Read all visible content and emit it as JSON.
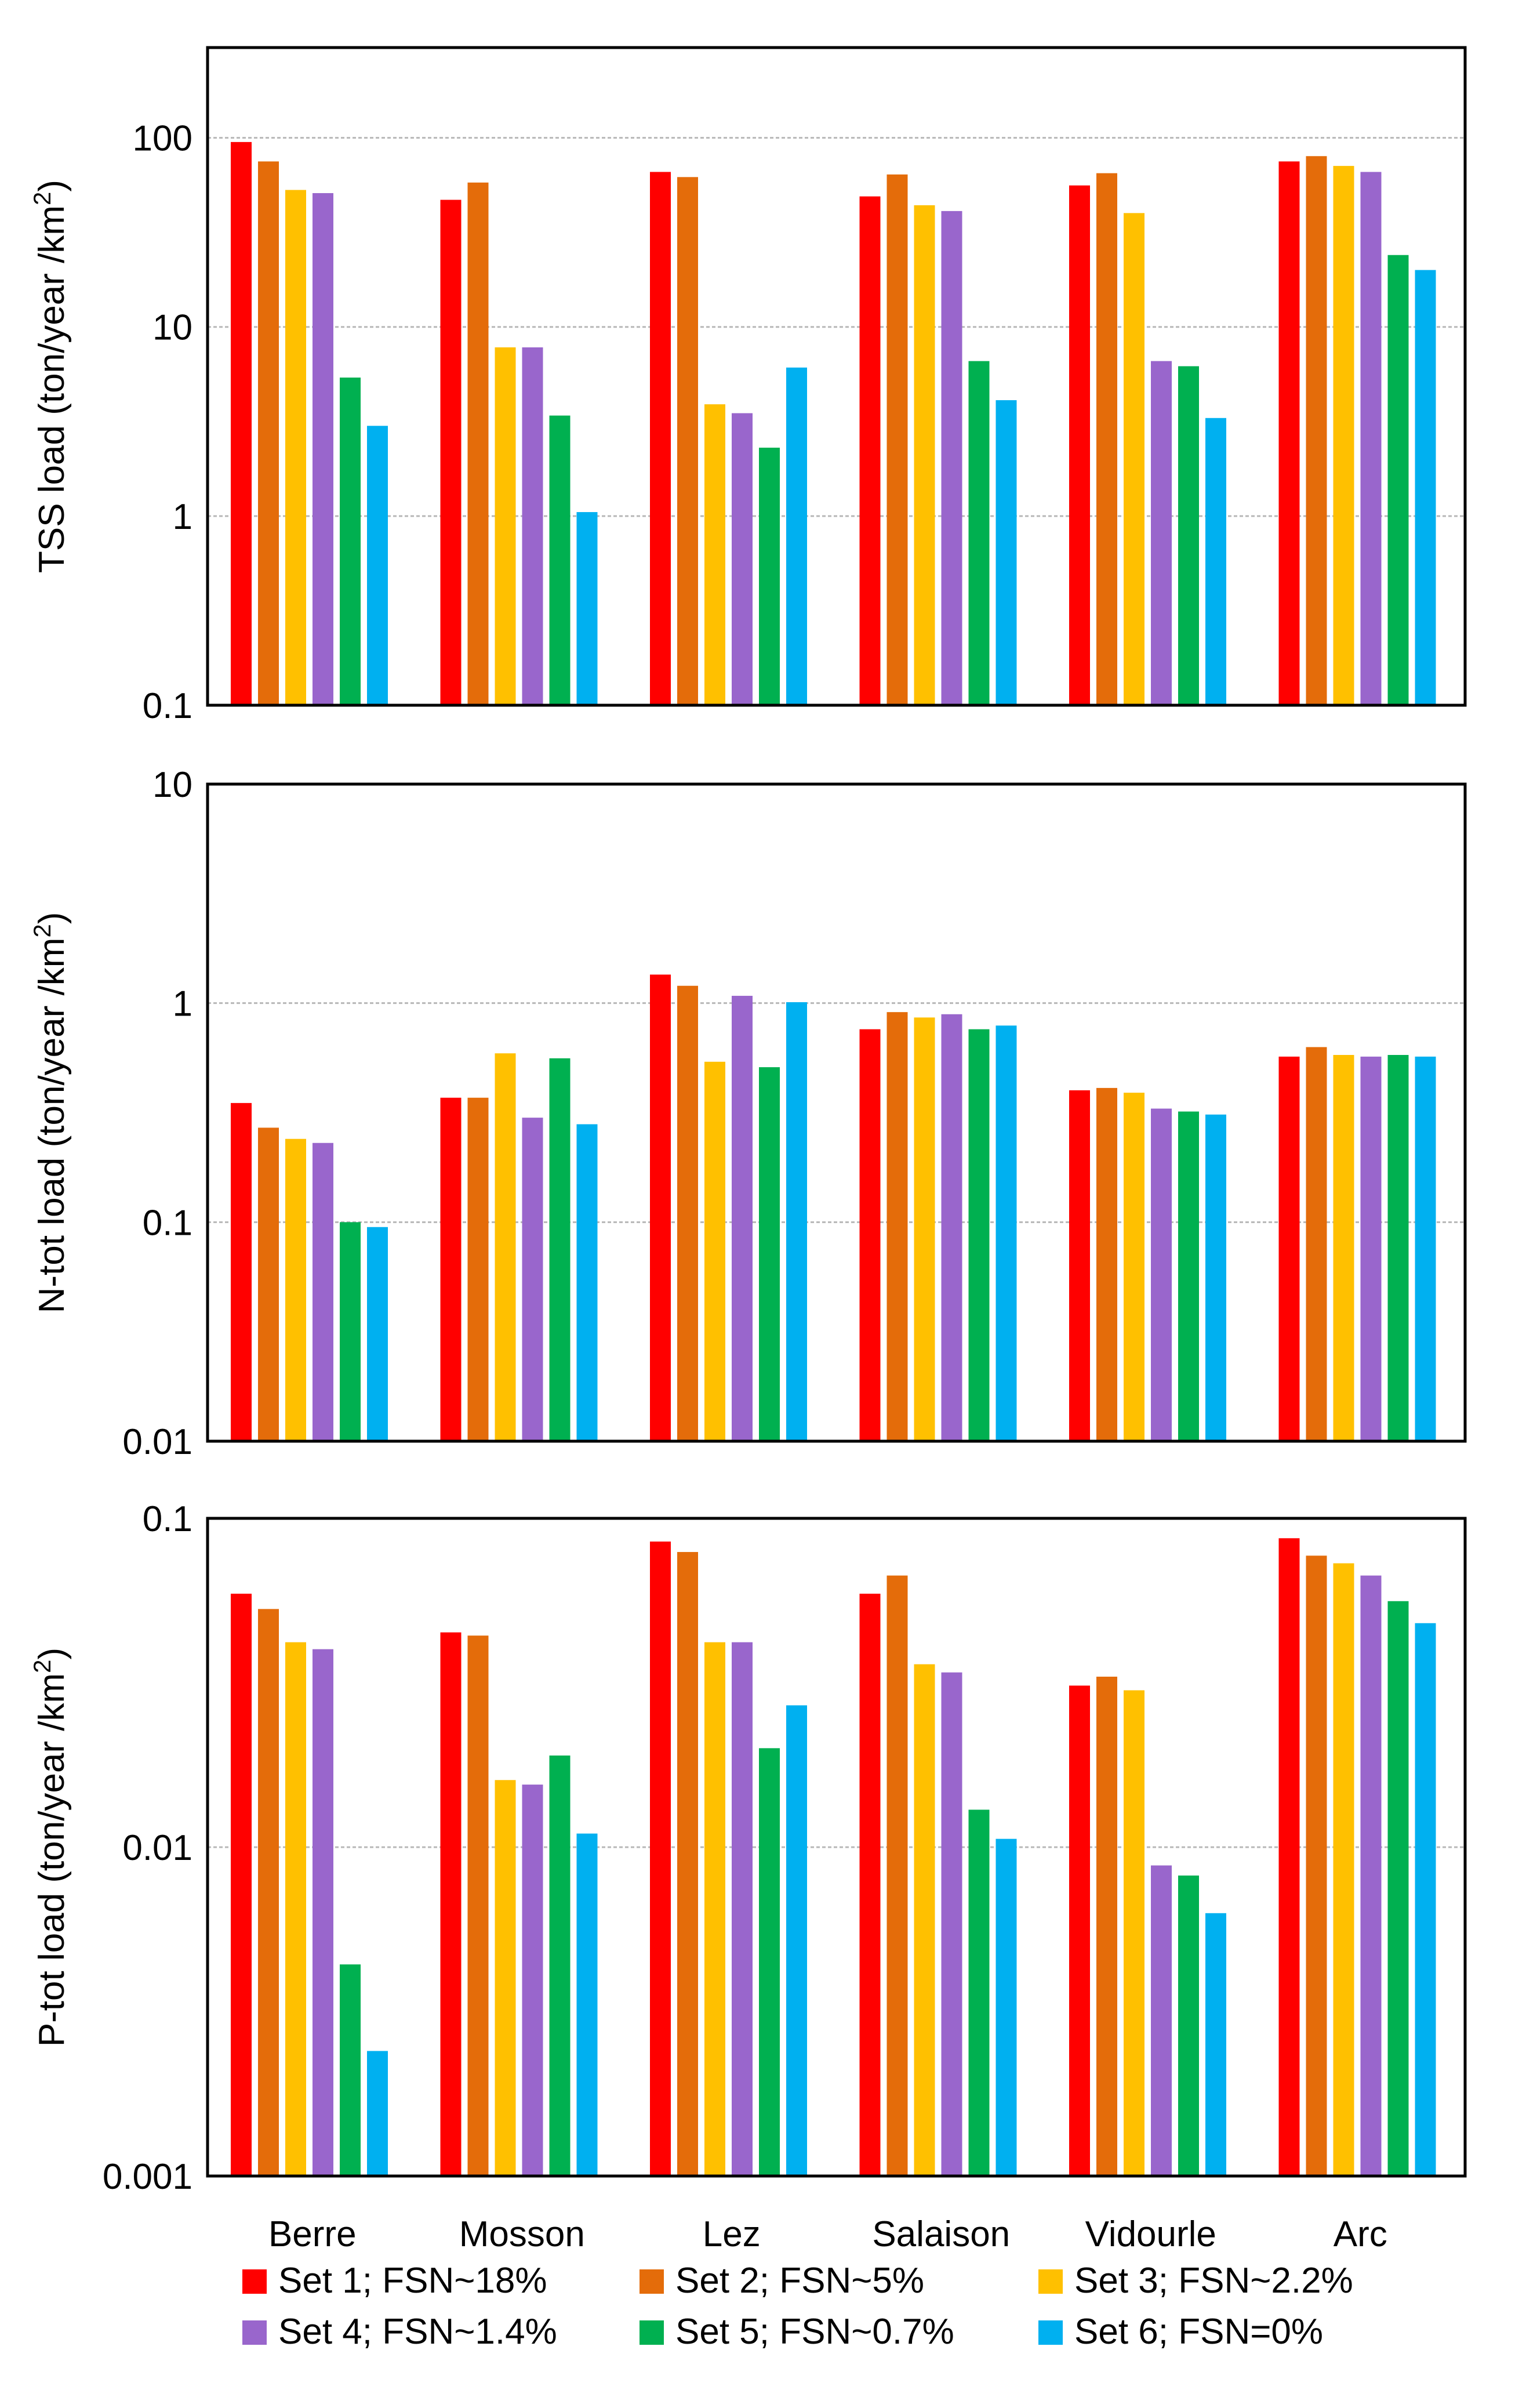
{
  "colors": {
    "set1": "#ff0000",
    "set2": "#e46c0a",
    "set3": "#ffc000",
    "set4": "#9966cc",
    "set5": "#00b050",
    "set6": "#00b0f0"
  },
  "chart_data": [
    {
      "type": "bar",
      "scale": "log",
      "ylabel": "TSS load (ton/year /km²)",
      "ylim": [
        0.1,
        300
      ],
      "yticks": [
        0.1,
        1,
        10,
        100
      ],
      "ytick_labels": [
        "0.1",
        "1",
        "10",
        "100"
      ],
      "categories": [
        "Berre",
        "Mosson",
        "Lez",
        "Salaison",
        "Vidourle",
        "Arc"
      ],
      "series": [
        {
          "name": "Set 1; FSN~18%",
          "values": [
            95,
            47,
            66,
            49,
            56,
            75
          ]
        },
        {
          "name": "Set 2; FSN~5%",
          "values": [
            75,
            58,
            62,
            64,
            65,
            80
          ]
        },
        {
          "name": "Set 3; FSN~2.2%",
          "values": [
            53,
            7.8,
            3.9,
            44,
            40,
            71
          ]
        },
        {
          "name": "Set 4; FSN~1.4%",
          "values": [
            51,
            7.8,
            3.5,
            41,
            6.6,
            66
          ]
        },
        {
          "name": "Set 5; FSN~0.7%",
          "values": [
            5.4,
            3.4,
            2.3,
            6.6,
            6.2,
            24
          ]
        },
        {
          "name": "Set 6; FSN=0%",
          "values": [
            3.0,
            1.05,
            6.1,
            4.1,
            3.3,
            20
          ]
        }
      ]
    },
    {
      "type": "bar",
      "scale": "log",
      "ylabel": "N-tot load (ton/year /km²)",
      "ylim": [
        0.01,
        10
      ],
      "yticks": [
        0.01,
        0.1,
        1,
        10
      ],
      "ytick_labels": [
        "0.01",
        "0.1",
        "1",
        "10"
      ],
      "categories": [
        "Berre",
        "Mosson",
        "Lez",
        "Salaison",
        "Vidourle",
        "Arc"
      ],
      "series": [
        {
          "name": "Set 1; FSN~18%",
          "values": [
            0.35,
            0.37,
            1.35,
            0.76,
            0.4,
            0.57
          ]
        },
        {
          "name": "Set 2; FSN~5%",
          "values": [
            0.27,
            0.37,
            1.2,
            0.91,
            0.41,
            0.63
          ]
        },
        {
          "name": "Set 3; FSN~2.2%",
          "values": [
            0.24,
            0.59,
            0.54,
            0.86,
            0.39,
            0.58
          ]
        },
        {
          "name": "Set 4; FSN~1.4%",
          "values": [
            0.23,
            0.3,
            1.08,
            0.89,
            0.33,
            0.57
          ]
        },
        {
          "name": "Set 5; FSN~0.7%",
          "values": [
            0.1,
            0.56,
            0.51,
            0.76,
            0.32,
            0.58
          ]
        },
        {
          "name": "Set 6; FSN=0%",
          "values": [
            0.095,
            0.28,
            1.01,
            0.79,
            0.31,
            0.57
          ]
        }
      ]
    },
    {
      "type": "bar",
      "scale": "log",
      "ylabel": "P-tot load (ton/year /km²)",
      "ylim": [
        0.001,
        0.1
      ],
      "yticks": [
        0.001,
        0.01,
        0.1
      ],
      "ytick_labels": [
        "0.001",
        "0.01",
        "0.1"
      ],
      "categories": [
        "Berre",
        "Mosson",
        "Lez",
        "Salaison",
        "Vidourle",
        "Arc"
      ],
      "series": [
        {
          "name": "Set 1; FSN~18%",
          "values": [
            0.059,
            0.045,
            0.085,
            0.059,
            0.031,
            0.087
          ]
        },
        {
          "name": "Set 2; FSN~5%",
          "values": [
            0.053,
            0.044,
            0.079,
            0.067,
            0.033,
            0.077
          ]
        },
        {
          "name": "Set 3; FSN~2.2%",
          "values": [
            0.042,
            0.016,
            0.042,
            0.036,
            0.03,
            0.073
          ]
        },
        {
          "name": "Set 4; FSN~1.4%",
          "values": [
            0.04,
            0.0155,
            0.042,
            0.034,
            0.0088,
            0.067
          ]
        },
        {
          "name": "Set 5; FSN~0.7%",
          "values": [
            0.0044,
            0.019,
            0.02,
            0.013,
            0.0082,
            0.056
          ]
        },
        {
          "name": "Set 6; FSN=0%",
          "values": [
            0.0024,
            0.011,
            0.027,
            0.0106,
            0.0063,
            0.048
          ]
        }
      ]
    }
  ],
  "categories": [
    "Berre",
    "Mosson",
    "Lez",
    "Salaison",
    "Vidourle",
    "Arc"
  ],
  "legend": [
    "Set 1; FSN~18%",
    "Set 2; FSN~5%",
    "Set 3; FSN~2.2%",
    "Set 4; FSN~1.4%",
    "Set 5; FSN~0.7%",
    "Set 6; FSN=0%"
  ]
}
